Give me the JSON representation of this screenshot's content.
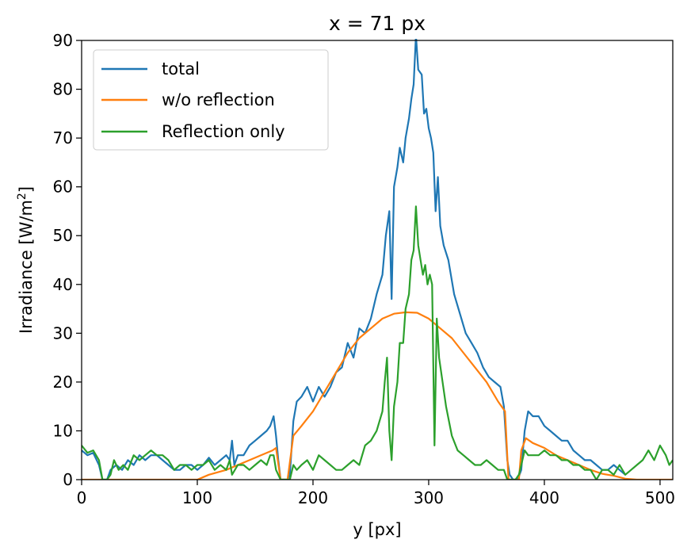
{
  "chart_data": {
    "type": "line",
    "title": "x = 71 px",
    "xlabel": "y [px]",
    "ylabel_main": "Irradiance [W/m",
    "ylabel_sup": "2",
    "ylabel_end": "]",
    "xlim": [
      0,
      511
    ],
    "ylim": [
      0,
      90
    ],
    "xticks": [
      0,
      100,
      200,
      300,
      400,
      500
    ],
    "yticks": [
      0,
      10,
      20,
      30,
      40,
      50,
      60,
      70,
      80,
      90
    ],
    "grid": false,
    "legend_position": "top-left",
    "series": [
      {
        "name": "total",
        "color": "#1f77b4",
        "points": [
          [
            0,
            6
          ],
          [
            5,
            5
          ],
          [
            10,
            5.5
          ],
          [
            15,
            3
          ],
          [
            18,
            0
          ],
          [
            22,
            0
          ],
          [
            25,
            2
          ],
          [
            30,
            3
          ],
          [
            35,
            2
          ],
          [
            40,
            4
          ],
          [
            45,
            3
          ],
          [
            50,
            5
          ],
          [
            55,
            4
          ],
          [
            60,
            5
          ],
          [
            65,
            5
          ],
          [
            70,
            4
          ],
          [
            75,
            3
          ],
          [
            80,
            2
          ],
          [
            85,
            2
          ],
          [
            90,
            3
          ],
          [
            95,
            3
          ],
          [
            100,
            2
          ],
          [
            105,
            3
          ],
          [
            110,
            4.5
          ],
          [
            115,
            3
          ],
          [
            120,
            4
          ],
          [
            125,
            5
          ],
          [
            128,
            4
          ],
          [
            130,
            8
          ],
          [
            132,
            3
          ],
          [
            135,
            5
          ],
          [
            140,
            5
          ],
          [
            145,
            7
          ],
          [
            150,
            8
          ],
          [
            155,
            9
          ],
          [
            160,
            10
          ],
          [
            163,
            11
          ],
          [
            166,
            13
          ],
          [
            168,
            9
          ],
          [
            170,
            4
          ],
          [
            172,
            0
          ],
          [
            178,
            0
          ],
          [
            180,
            1
          ],
          [
            183,
            12
          ],
          [
            186,
            16
          ],
          [
            190,
            17
          ],
          [
            195,
            19
          ],
          [
            200,
            16
          ],
          [
            205,
            19
          ],
          [
            210,
            17
          ],
          [
            215,
            19
          ],
          [
            220,
            22
          ],
          [
            225,
            23
          ],
          [
            230,
            28
          ],
          [
            235,
            25
          ],
          [
            240,
            31
          ],
          [
            245,
            30
          ],
          [
            250,
            33
          ],
          [
            255,
            38
          ],
          [
            260,
            42
          ],
          [
            263,
            50
          ],
          [
            266,
            55
          ],
          [
            268,
            37
          ],
          [
            270,
            60
          ],
          [
            273,
            64
          ],
          [
            275,
            68
          ],
          [
            278,
            65
          ],
          [
            280,
            70
          ],
          [
            283,
            74
          ],
          [
            285,
            78
          ],
          [
            287,
            81
          ],
          [
            289,
            91
          ],
          [
            291,
            84
          ],
          [
            294,
            83
          ],
          [
            296,
            75
          ],
          [
            298,
            76
          ],
          [
            300,
            72
          ],
          [
            302,
            70
          ],
          [
            304,
            67
          ],
          [
            306,
            55
          ],
          [
            308,
            62
          ],
          [
            310,
            52
          ],
          [
            313,
            48
          ],
          [
            317,
            45
          ],
          [
            322,
            38
          ],
          [
            327,
            34
          ],
          [
            332,
            30
          ],
          [
            337,
            28
          ],
          [
            342,
            26
          ],
          [
            347,
            23
          ],
          [
            352,
            21
          ],
          [
            357,
            20
          ],
          [
            362,
            19
          ],
          [
            365,
            15
          ],
          [
            368,
            4
          ],
          [
            370,
            1
          ],
          [
            373,
            0
          ],
          [
            377,
            0
          ],
          [
            380,
            2
          ],
          [
            383,
            10
          ],
          [
            386,
            14
          ],
          [
            390,
            13
          ],
          [
            395,
            13
          ],
          [
            400,
            11
          ],
          [
            405,
            10
          ],
          [
            410,
            9
          ],
          [
            415,
            8
          ],
          [
            420,
            8
          ],
          [
            425,
            6
          ],
          [
            430,
            5
          ],
          [
            435,
            4
          ],
          [
            440,
            4
          ],
          [
            445,
            3
          ],
          [
            450,
            2
          ],
          [
            455,
            2
          ],
          [
            460,
            3
          ],
          [
            465,
            2
          ],
          [
            470,
            1
          ]
        ]
      },
      {
        "name": "w/o reflection",
        "color": "#ff7f0e",
        "points": [
          [
            0,
            0
          ],
          [
            50,
            0
          ],
          [
            100,
            0
          ],
          [
            110,
            1
          ],
          [
            125,
            2
          ],
          [
            140,
            3.5
          ],
          [
            155,
            5
          ],
          [
            165,
            6
          ],
          [
            168,
            6.5
          ],
          [
            172,
            0
          ],
          [
            178,
            0
          ],
          [
            183,
            9
          ],
          [
            190,
            11
          ],
          [
            200,
            14
          ],
          [
            210,
            18
          ],
          [
            220,
            22
          ],
          [
            230,
            26
          ],
          [
            240,
            29
          ],
          [
            250,
            31
          ],
          [
            260,
            33
          ],
          [
            270,
            34
          ],
          [
            280,
            34.3
          ],
          [
            290,
            34.2
          ],
          [
            300,
            33
          ],
          [
            310,
            31
          ],
          [
            320,
            29
          ],
          [
            330,
            26
          ],
          [
            340,
            23
          ],
          [
            350,
            20
          ],
          [
            360,
            16
          ],
          [
            366,
            14
          ],
          [
            369,
            0
          ],
          [
            378,
            0
          ],
          [
            380,
            6
          ],
          [
            384,
            8.5
          ],
          [
            390,
            7.5
          ],
          [
            400,
            6.5
          ],
          [
            410,
            5
          ],
          [
            420,
            4
          ],
          [
            430,
            3
          ],
          [
            440,
            2
          ],
          [
            450,
            1.2
          ],
          [
            460,
            0.8
          ],
          [
            470,
            0.2
          ],
          [
            480,
            0
          ],
          [
            511,
            0
          ]
        ]
      },
      {
        "name": "Reflection only",
        "color": "#2ca02c",
        "points": [
          [
            0,
            7
          ],
          [
            5,
            5.5
          ],
          [
            10,
            6
          ],
          [
            15,
            4
          ],
          [
            18,
            0
          ],
          [
            22,
            0
          ],
          [
            25,
            1
          ],
          [
            28,
            4
          ],
          [
            32,
            2
          ],
          [
            36,
            3
          ],
          [
            40,
            2
          ],
          [
            45,
            5
          ],
          [
            50,
            4
          ],
          [
            55,
            5
          ],
          [
            60,
            6
          ],
          [
            65,
            5
          ],
          [
            70,
            5
          ],
          [
            75,
            4
          ],
          [
            80,
            2
          ],
          [
            85,
            3
          ],
          [
            90,
            3
          ],
          [
            95,
            2
          ],
          [
            100,
            3
          ],
          [
            105,
            3
          ],
          [
            110,
            4
          ],
          [
            115,
            2
          ],
          [
            120,
            3
          ],
          [
            125,
            2
          ],
          [
            128,
            4
          ],
          [
            130,
            1
          ],
          [
            135,
            3
          ],
          [
            140,
            3
          ],
          [
            145,
            2
          ],
          [
            150,
            3
          ],
          [
            155,
            4
          ],
          [
            160,
            3
          ],
          [
            163,
            5
          ],
          [
            166,
            5
          ],
          [
            168,
            2
          ],
          [
            172,
            0
          ],
          [
            180,
            0
          ],
          [
            183,
            3
          ],
          [
            186,
            2
          ],
          [
            190,
            3
          ],
          [
            195,
            4
          ],
          [
            200,
            2
          ],
          [
            205,
            5
          ],
          [
            210,
            4
          ],
          [
            215,
            3
          ],
          [
            220,
            2
          ],
          [
            225,
            2
          ],
          [
            230,
            3
          ],
          [
            235,
            4
          ],
          [
            240,
            3
          ],
          [
            245,
            7
          ],
          [
            250,
            8
          ],
          [
            255,
            10
          ],
          [
            260,
            14
          ],
          [
            262,
            20
          ],
          [
            264,
            25
          ],
          [
            266,
            10
          ],
          [
            268,
            4
          ],
          [
            270,
            15
          ],
          [
            273,
            20
          ],
          [
            275,
            28
          ],
          [
            278,
            28
          ],
          [
            280,
            35
          ],
          [
            283,
            38
          ],
          [
            285,
            45
          ],
          [
            287,
            47
          ],
          [
            289,
            56
          ],
          [
            291,
            48
          ],
          [
            293,
            45
          ],
          [
            295,
            42
          ],
          [
            297,
            44
          ],
          [
            299,
            40
          ],
          [
            301,
            42
          ],
          [
            303,
            40
          ],
          [
            305,
            7
          ],
          [
            307,
            33
          ],
          [
            309,
            25
          ],
          [
            312,
            20
          ],
          [
            315,
            15
          ],
          [
            320,
            9
          ],
          [
            325,
            6
          ],
          [
            330,
            5
          ],
          [
            335,
            4
          ],
          [
            340,
            3
          ],
          [
            345,
            3
          ],
          [
            350,
            4
          ],
          [
            355,
            3
          ],
          [
            360,
            2
          ],
          [
            365,
            2
          ],
          [
            368,
            0
          ],
          [
            375,
            0
          ],
          [
            378,
            1
          ],
          [
            380,
            3
          ],
          [
            383,
            6
          ],
          [
            386,
            5
          ],
          [
            390,
            5
          ],
          [
            395,
            5
          ],
          [
            400,
            6
          ],
          [
            405,
            5
          ],
          [
            410,
            5
          ],
          [
            415,
            4
          ],
          [
            420,
            4
          ],
          [
            425,
            3
          ],
          [
            430,
            3
          ],
          [
            435,
            2
          ],
          [
            440,
            2
          ],
          [
            445,
            0
          ],
          [
            450,
            2
          ],
          [
            455,
            2
          ],
          [
            460,
            1
          ],
          [
            465,
            3
          ],
          [
            470,
            1
          ],
          [
            475,
            2
          ],
          [
            480,
            3
          ],
          [
            485,
            4
          ],
          [
            490,
            6
          ],
          [
            495,
            4
          ],
          [
            500,
            7
          ],
          [
            505,
            5
          ],
          [
            508,
            3
          ],
          [
            511,
            4
          ]
        ]
      }
    ]
  }
}
